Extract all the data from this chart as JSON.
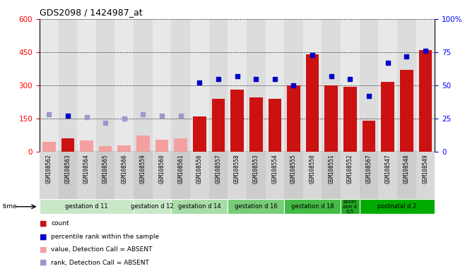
{
  "title": "GDS2098 / 1424987_at",
  "samples": [
    "GSM108562",
    "GSM108563",
    "GSM108564",
    "GSM108565",
    "GSM108566",
    "GSM108559",
    "GSM108560",
    "GSM108561",
    "GSM108556",
    "GSM108557",
    "GSM108558",
    "GSM108553",
    "GSM108554",
    "GSM108555",
    "GSM108550",
    "GSM108551",
    "GSM108552",
    "GSM108567",
    "GSM108547",
    "GSM108548",
    "GSM108549"
  ],
  "count_values": [
    45,
    60,
    50,
    25,
    30,
    75,
    55,
    60,
    160,
    240,
    280,
    245,
    240,
    300,
    440,
    300,
    295,
    140,
    315,
    370,
    460
  ],
  "rank_values": [
    28,
    27,
    26,
    22,
    25,
    28,
    27,
    27,
    52,
    55,
    57,
    55,
    55,
    50,
    73,
    57,
    55,
    42,
    67,
    72,
    76
  ],
  "absent_mask": [
    1,
    0,
    1,
    1,
    1,
    1,
    1,
    1,
    0,
    0,
    0,
    0,
    0,
    0,
    0,
    0,
    0,
    0,
    0,
    0,
    0
  ],
  "groups": [
    {
      "label": "gestation d 11",
      "start": 0,
      "end": 5
    },
    {
      "label": "gestation d 12",
      "start": 5,
      "end": 7
    },
    {
      "label": "gestation d 14",
      "start": 7,
      "end": 10
    },
    {
      "label": "gestation d 16",
      "start": 10,
      "end": 13
    },
    {
      "label": "gestation d 18",
      "start": 13,
      "end": 16
    },
    {
      "label": "postn\natal d\n0.5",
      "start": 16,
      "end": 17
    },
    {
      "label": "postnatal d 2",
      "start": 17,
      "end": 21
    }
  ],
  "group_colors": [
    "#c8e8c8",
    "#c8e8c8",
    "#a8dca8",
    "#78cc78",
    "#44bb44",
    "#22aa22",
    "#00aa00"
  ],
  "ylim_left": [
    0,
    600
  ],
  "ylim_right": [
    0,
    100
  ],
  "left_ticks": [
    0,
    150,
    300,
    450,
    600
  ],
  "right_ticks": [
    0,
    25,
    50,
    75,
    100
  ],
  "bar_color_present": "#cc1111",
  "bar_color_absent": "#f4a0a0",
  "rank_color_present": "#0000cc",
  "rank_color_absent": "#9999cc",
  "bg_color": "#e8e8e8"
}
